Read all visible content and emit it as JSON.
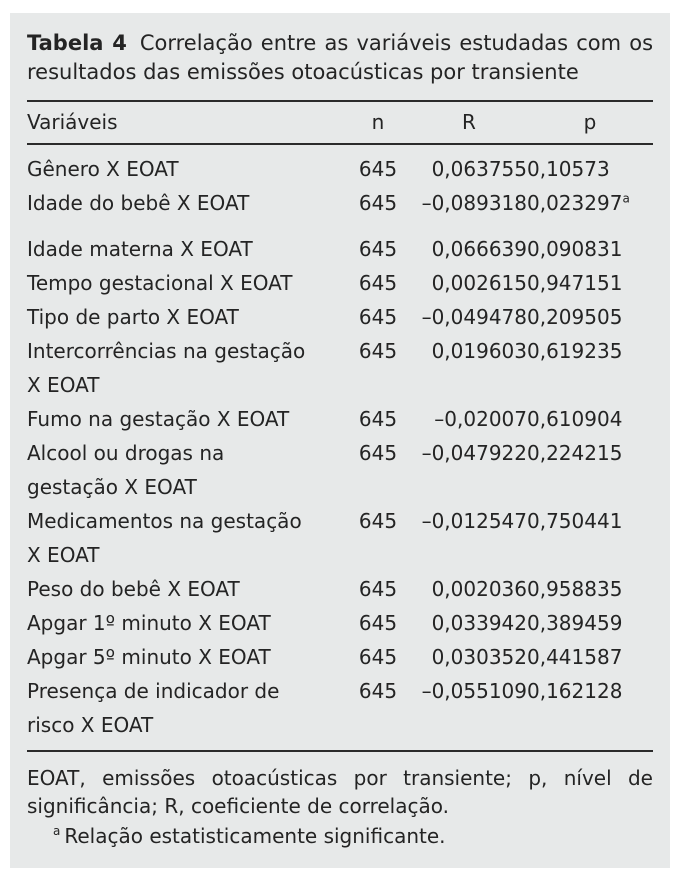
{
  "title": {
    "label": "Tabela 4",
    "text": "Correlação entre as variáveis estudadas com os resultados das emissões otoacústicas por transiente"
  },
  "table": {
    "columns": [
      "Variáveis",
      "n",
      "R",
      "p"
    ],
    "rows": [
      {
        "name": "Gênero X EOAT",
        "n": "645",
        "r": "0,063755",
        "p": "0,10573",
        "p_sup": "",
        "gap_after": false
      },
      {
        "name": "Idade do bebê X EOAT",
        "n": "645",
        "r": "–0,089318",
        "p": "0,023297",
        "p_sup": "a",
        "gap_after": true
      },
      {
        "name": "Idade materna X EOAT",
        "n": "645",
        "r": "0,066639",
        "p": "0,090831",
        "p_sup": "",
        "gap_after": false
      },
      {
        "name": "Tempo gestacional X EOAT",
        "n": "645",
        "r": "0,002615",
        "p": "0,947151",
        "p_sup": "",
        "gap_after": false
      },
      {
        "name": "Tipo de parto X EOAT",
        "n": "645",
        "r": "–0,049478",
        "p": "0,209505",
        "p_sup": "",
        "gap_after": false
      },
      {
        "name": "Intercorrências na gestação\nX EOAT",
        "n": "645",
        "r": "0,019603",
        "p": "0,619235",
        "p_sup": "",
        "gap_after": false
      },
      {
        "name": "Fumo na gestação X EOAT",
        "n": "645",
        "r": "–0,02007",
        "p": "0,610904",
        "p_sup": "",
        "gap_after": false
      },
      {
        "name": "Alcool ou drogas na\ngestação X EOAT",
        "n": "645",
        "r": "–0,047922",
        "p": "0,224215",
        "p_sup": "",
        "gap_after": false
      },
      {
        "name": "Medicamentos na gestação\nX EOAT",
        "n": "645",
        "r": "–0,012547",
        "p": "0,750441",
        "p_sup": "",
        "gap_after": false
      },
      {
        "name": "Peso do bebê X EOAT",
        "n": "645",
        "r": "0,002036",
        "p": "0,958835",
        "p_sup": "",
        "gap_after": false
      },
      {
        "name": "Apgar 1º minuto X EOAT",
        "n": "645",
        "r": "0,033942",
        "p": "0,389459",
        "p_sup": "",
        "gap_after": false
      },
      {
        "name": "Apgar 5º minuto X EOAT",
        "n": "645",
        "r": "0,030352",
        "p": "0,441587",
        "p_sup": "",
        "gap_after": false
      },
      {
        "name": "Presença de indicador de\nrisco X EOAT",
        "n": "645",
        "r": "–0,055109",
        "p": "0,162128",
        "p_sup": "",
        "gap_after": false
      }
    ]
  },
  "footnotes": {
    "abbreviations": "EOAT, emissões otoacústicas por transiente; p, nível de significância; R, coeficiente de correlação.",
    "significance_marker": "a",
    "significance_text": "Relação estatisticamente significante."
  },
  "colors": {
    "panel_background": "#e7e9e9",
    "text": "#242424",
    "rule": "#2b2b2b"
  }
}
